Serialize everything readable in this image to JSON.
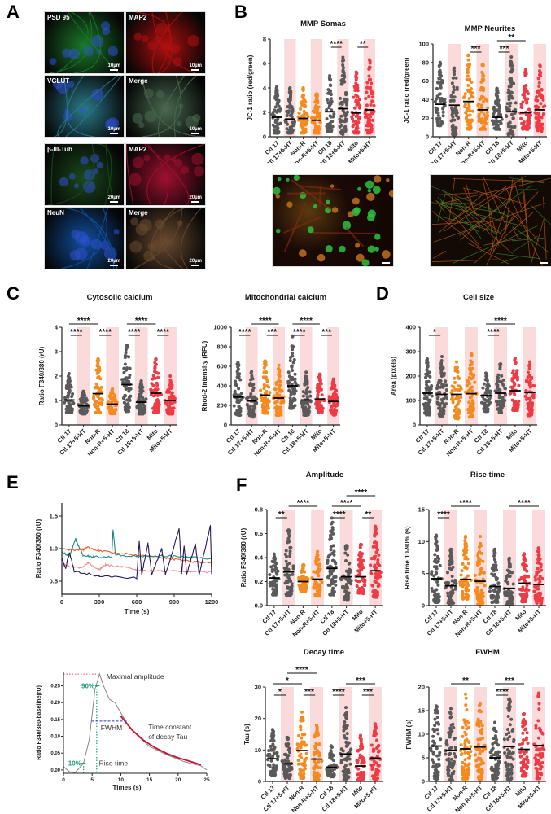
{
  "panels": {
    "A": {
      "letter": "A"
    },
    "B": {
      "letter": "B"
    },
    "C": {
      "letter": "C"
    },
    "D": {
      "letter": "D"
    },
    "E": {
      "letter": "E"
    },
    "F": {
      "letter": "F"
    }
  },
  "microscopy_A": [
    {
      "label": "PSD 95",
      "scale": "10µm",
      "color": "#1a7a2a"
    },
    {
      "label": "MAP2",
      "scale": "10µm",
      "color": "#b01010"
    },
    {
      "label": "VGLUT",
      "scale": "10µm",
      "color": "#2a7a8a"
    },
    {
      "label": "Merge",
      "scale": "10µm",
      "color": "#4a6a50"
    },
    {
      "label": "β-III-Tub",
      "scale": "20µm",
      "color": "#1a4a1a"
    },
    {
      "label": "MAP2",
      "scale": "20µm",
      "color": "#a01030"
    },
    {
      "label": "NeuN",
      "scale": "20µm",
      "color": "#1050a0"
    },
    {
      "label": "Merge",
      "scale": "20µm",
      "color": "#6a4a30"
    }
  ],
  "microscopy_B": [
    {
      "label": "",
      "scale": ""
    },
    {
      "label": "",
      "scale": ""
    }
  ],
  "colors": {
    "ctl": "#5a5a5a",
    "nonr": "#f58a1f",
    "mito": "#ee3b45",
    "shade": "#fadadb",
    "trace_orange": "#f25a2a",
    "trace_teal": "#1e8a84",
    "trace_pink": "#f08a88",
    "trace_navy": "#2a1a5a"
  },
  "groups": [
    "Ctl 17",
    "Ctl 17+5-HT",
    "Non-R",
    "Non-R+5-HT",
    "Ctl 18",
    "Ctl 18+5-HT",
    "Mito",
    "Mito+5-HT"
  ],
  "chart_data": [
    {
      "id": "mmp_somas",
      "type": "scatter",
      "title": "MMP Somas",
      "ylabel": "JC-1 ratio (red/green)",
      "ylim": [
        0,
        8
      ],
      "yticks": [
        0,
        2,
        4,
        6,
        8
      ],
      "categories": [
        "Ctl 17",
        "Ctl 17+5-HT",
        "Non-R",
        "Non-R+5-HT",
        "Ctl 18",
        "Ctl 18+5-HT",
        "Mito",
        "Mito+5-HT"
      ],
      "means": [
        1.6,
        1.45,
        1.5,
        1.35,
        2.05,
        2.3,
        1.95,
        2.2
      ],
      "max": [
        4.1,
        4.0,
        4.0,
        3.5,
        5.0,
        6.5,
        5.3,
        6.3
      ],
      "min": [
        0.3,
        0.3,
        0.3,
        0.3,
        0.4,
        0.2,
        0.3,
        0.3
      ],
      "significance": [
        {
          "from": 4,
          "to": 5,
          "label": "****",
          "level": 0
        },
        {
          "from": 6,
          "to": 7,
          "label": "**",
          "level": 0
        }
      ]
    },
    {
      "id": "mmp_neurites",
      "type": "scatter",
      "title": "MMP Neurites",
      "ylabel": "JC-1 ratio (red/green)",
      "ylim": [
        0,
        100
      ],
      "yticks": [
        0,
        20,
        40,
        60,
        80,
        100
      ],
      "categories": [
        "Ctl 17",
        "Ctl 17+5-HT",
        "Non-R",
        "Non-R+5-HT",
        "Ctl 18",
        "Ctl 18+5-HT",
        "Mito",
        "Mito+5-HT"
      ],
      "means": [
        35,
        34,
        38,
        29,
        21,
        27,
        26,
        29
      ],
      "max": [
        80,
        74,
        88,
        78,
        52,
        86,
        72,
        77
      ],
      "min": [
        12,
        2,
        8,
        8,
        8,
        2,
        8,
        6
      ],
      "significance": [
        {
          "from": 2,
          "to": 3,
          "label": "***",
          "level": 0
        },
        {
          "from": 4,
          "to": 5,
          "label": "***",
          "level": 0
        },
        {
          "from": 4,
          "to": 6,
          "label": "**",
          "level": 1
        }
      ]
    },
    {
      "id": "cytosolic_calcium",
      "type": "scatter",
      "title": "Cytosolic calcium",
      "ylabel": "Ratio F340/380 (rU)",
      "ylim": [
        0,
        4
      ],
      "yticks": [
        0,
        1,
        2,
        3,
        4
      ],
      "categories": [
        "Ctl 17",
        "Ctl 17+5-HT",
        "Non-R",
        "Non-R+5-HT",
        "Ctl 18",
        "Ctl 18+5-HT",
        "Mito",
        "Mito+5-HT"
      ],
      "means": [
        1.02,
        0.78,
        1.28,
        0.85,
        1.65,
        0.93,
        1.3,
        1.0
      ],
      "max": [
        2.1,
        1.38,
        2.7,
        1.47,
        3.25,
        1.8,
        2.7,
        2.0
      ],
      "min": [
        0.5,
        0.45,
        0.5,
        0.45,
        0.55,
        0.45,
        0.5,
        0.45
      ],
      "significance": [
        {
          "from": 0,
          "to": 1,
          "label": "****",
          "level": 0
        },
        {
          "from": 2,
          "to": 3,
          "label": "****",
          "level": 0
        },
        {
          "from": 4,
          "to": 5,
          "label": "****",
          "level": 0
        },
        {
          "from": 6,
          "to": 7,
          "label": "****",
          "level": 0
        },
        {
          "from": 0,
          "to": 2,
          "label": "****",
          "level": 1
        },
        {
          "from": 4,
          "to": 6,
          "label": "****",
          "level": 1
        }
      ]
    },
    {
      "id": "mitochondrial_calcium",
      "type": "scatter",
      "title": "Mitochondrial calcium",
      "ylabel": "Rhod-2 intensity (RFU)",
      "ylim": [
        0,
        1000
      ],
      "yticks": [
        0,
        200,
        400,
        600,
        800,
        1000
      ],
      "categories": [
        "Ctl 17",
        "Ctl 17+5-HT",
        "Non-R",
        "Non-R+5-HT",
        "Ctl 18",
        "Ctl 18+5-HT",
        "Mito",
        "Mito+5-HT"
      ],
      "means": [
        285,
        245,
        305,
        275,
        400,
        255,
        265,
        240
      ],
      "max": [
        640,
        545,
        655,
        610,
        910,
        540,
        520,
        470
      ],
      "min": [
        100,
        80,
        120,
        100,
        170,
        100,
        130,
        100
      ],
      "significance": [
        {
          "from": 0,
          "to": 1,
          "label": "****",
          "level": 0
        },
        {
          "from": 2,
          "to": 3,
          "label": "***",
          "level": 0
        },
        {
          "from": 4,
          "to": 5,
          "label": "****",
          "level": 0
        },
        {
          "from": 6,
          "to": 7,
          "label": "***",
          "level": 0
        },
        {
          "from": 1,
          "to": 3,
          "label": "****",
          "level": 1
        },
        {
          "from": 4,
          "to": 6,
          "label": "****",
          "level": 1
        }
      ]
    },
    {
      "id": "cell_size",
      "type": "scatter",
      "title": "Cell size",
      "ylabel": "Area (pixels)",
      "ylim": [
        0,
        400
      ],
      "yticks": [
        0,
        100,
        200,
        300,
        400
      ],
      "categories": [
        "Ctl 17",
        "Ctl 17+5-HT",
        "Non-R",
        "Non-R+5-HT",
        "Ctl 18",
        "Ctl 18+5-HT",
        "Mito",
        "Mito+5-HT"
      ],
      "means": [
        130,
        125,
        125,
        128,
        120,
        130,
        140,
        133
      ],
      "max": [
        270,
        280,
        258,
        290,
        212,
        250,
        272,
        258
      ],
      "min": [
        40,
        35,
        25,
        32,
        55,
        50,
        60,
        38
      ],
      "significance": [
        {
          "from": 0,
          "to": 1,
          "label": "*",
          "level": 0
        },
        {
          "from": 4,
          "to": 5,
          "label": "****",
          "level": 0
        },
        {
          "from": 4,
          "to": 6,
          "label": "****",
          "level": 1
        }
      ]
    },
    {
      "id": "calcium_traces",
      "type": "line",
      "title": "",
      "xlabel": "Time (s)",
      "ylabel": "Ratio F340/380 (rU)",
      "xlim": [
        0,
        1200
      ],
      "ylim": [
        0.3,
        1.7
      ],
      "xticks": [
        0,
        300,
        600,
        900,
        1200
      ],
      "yticks": [
        0.5,
        1.0,
        1.5
      ],
      "series": [
        {
          "name": "orange",
          "color": "#f25a2a",
          "x": [
            0,
            100,
            170,
            200,
            300,
            450,
            600,
            750,
            900,
            1050,
            1200
          ],
          "y": [
            1.0,
            0.98,
            0.99,
            1.02,
            0.97,
            0.93,
            0.9,
            0.88,
            0.84,
            0.8,
            0.78
          ]
        },
        {
          "name": "teal",
          "color": "#1e8a84",
          "x": [
            0,
            60,
            110,
            130,
            170,
            250,
            400,
            410,
            430,
            600,
            800,
            1000,
            1200
          ],
          "y": [
            0.95,
            0.88,
            1.15,
            1.05,
            0.9,
            0.87,
            0.88,
            1.3,
            0.9,
            0.88,
            0.89,
            0.87,
            0.85
          ]
        },
        {
          "name": "pink",
          "color": "#f08a88",
          "x": [
            0,
            150,
            210,
            300,
            350,
            480,
            600,
            800,
            1000,
            1200
          ],
          "y": [
            0.75,
            0.7,
            0.78,
            0.68,
            0.75,
            0.72,
            0.67,
            0.66,
            0.65,
            0.64
          ]
        },
        {
          "name": "navy",
          "color": "#2a1a5a",
          "x": [
            0,
            30,
            60,
            100,
            300,
            600,
            620,
            640,
            690,
            720,
            800,
            830,
            940,
            960,
            980,
            1000,
            1070,
            1100,
            1190,
            1200
          ],
          "y": [
            0.85,
            0.7,
            0.95,
            0.65,
            0.58,
            0.55,
            1.12,
            0.6,
            1.08,
            0.6,
            1.0,
            0.6,
            1.3,
            0.62,
            1.05,
            0.6,
            1.07,
            0.6,
            1.35,
            0.6
          ]
        }
      ]
    },
    {
      "id": "transient_schematic",
      "type": "line",
      "title": "",
      "xlabel": "Times (s)",
      "ylabel": "Ratio F340/380-baseline(rU)",
      "xlim": [
        0,
        25
      ],
      "ylim": [
        -0.01,
        0.29
      ],
      "xticks": [
        0,
        5,
        10,
        15,
        20,
        25
      ],
      "yticks": [
        0.0,
        0.05,
        0.1,
        0.15,
        0.2,
        0.25
      ],
      "annotations": [
        "Maximal amplitude",
        "90%",
        "10%",
        "FWHM",
        "Rise time",
        "Time constant",
        "of decay Tau"
      ],
      "series": [
        {
          "name": "trace",
          "color": "#888888",
          "x": [
            0,
            1,
            2,
            3,
            3.5,
            4.5,
            5.5,
            6.3,
            7,
            8,
            9,
            10,
            11,
            13,
            15,
            18,
            21,
            24,
            25
          ],
          "y": [
            0.01,
            -0.005,
            -0.008,
            0.01,
            0.02,
            0.09,
            0.24,
            0.285,
            0.25,
            0.21,
            0.2,
            0.17,
            0.14,
            0.1,
            0.07,
            0.045,
            0.025,
            0.012,
            0.0
          ]
        },
        {
          "name": "fit",
          "color": "#cc1133",
          "x": [
            10,
            12,
            14,
            16,
            18,
            20,
            22,
            24
          ],
          "y": [
            0.16,
            0.118,
            0.088,
            0.066,
            0.049,
            0.036,
            0.026,
            0.015
          ]
        }
      ]
    },
    {
      "id": "amplitude",
      "type": "scatter",
      "title": "Amplitude",
      "ylabel": "Ratio F340/380 (rU)",
      "ylim": [
        0,
        0.8
      ],
      "yticks": [
        0.0,
        0.2,
        0.4,
        0.6,
        0.8
      ],
      "categories": [
        "Ctl 17",
        "Ctl 17+5-HT",
        "Non-R",
        "Non-R+5-HT",
        "Ctl 18",
        "Ctl 18+5-HT",
        "Mito",
        "Mito+5-HT"
      ],
      "means": [
        0.23,
        0.28,
        0.2,
        0.22,
        0.31,
        0.24,
        0.24,
        0.29
      ],
      "max": [
        0.43,
        0.63,
        0.34,
        0.45,
        0.73,
        0.5,
        0.51,
        0.66
      ],
      "min": [
        0.09,
        0.08,
        0.12,
        0.08,
        0.09,
        0.05,
        0.1,
        0.07
      ],
      "significance": [
        {
          "from": 0,
          "to": 1,
          "label": "**",
          "level": 0
        },
        {
          "from": 4,
          "to": 5,
          "label": "****",
          "level": 0
        },
        {
          "from": 6,
          "to": 7,
          "label": "**",
          "level": 0
        },
        {
          "from": 1,
          "to": 3,
          "label": "****",
          "level": 1
        },
        {
          "from": 4,
          "to": 6,
          "label": "****",
          "level": 1
        },
        {
          "from": 5,
          "to": 7,
          "label": "****",
          "level": 2
        }
      ]
    },
    {
      "id": "rise_time",
      "type": "scatter",
      "title": "Rise time",
      "ylabel": "Rise time 10-90% (s)",
      "ylim": [
        0,
        15
      ],
      "yticks": [
        0,
        5,
        10,
        15
      ],
      "categories": [
        "Ctl 17",
        "Ctl 17+5-HT",
        "Non-R",
        "Non-R+5-HT",
        "Ctl 18",
        "Ctl 18+5-HT",
        "Mito",
        "Mito+5-HT"
      ],
      "means": [
        4.2,
        3.1,
        4.1,
        3.8,
        3.0,
        2.7,
        3.5,
        3.3
      ],
      "max": [
        11,
        8.8,
        10.8,
        10.8,
        8.8,
        7.4,
        8.1,
        9.0
      ],
      "min": [
        0.5,
        0.3,
        1.0,
        0.2,
        0.5,
        0.1,
        0.5,
        0.3
      ],
      "significance": [
        {
          "from": 0,
          "to": 1,
          "label": "****",
          "level": 0
        },
        {
          "from": 1,
          "to": 3,
          "label": "****",
          "level": 1
        },
        {
          "from": 5,
          "to": 7,
          "label": "****",
          "level": 1
        }
      ]
    },
    {
      "id": "decay_time",
      "type": "scatter",
      "title": "Decay time",
      "ylabel": "Tau (s)",
      "ylim": [
        0,
        30
      ],
      "yticks": [
        0,
        10,
        20,
        30
      ],
      "categories": [
        "Ctl 17",
        "Ctl 17+5-HT",
        "Non-R",
        "Non-R+5-HT",
        "Ctl 18",
        "Ctl 18+5-HT",
        "Mito",
        "Mito+5-HT"
      ],
      "means": [
        7.2,
        5.6,
        9.8,
        7.1,
        4.5,
        8.7,
        4.9,
        7.4
      ],
      "max": [
        16.5,
        14.0,
        22.0,
        17.8,
        11.3,
        23.5,
        14.6,
        18.3
      ],
      "min": [
        2.0,
        1.0,
        1.0,
        0.5,
        1.5,
        0.5,
        0.5,
        0.5
      ],
      "significance": [
        {
          "from": 0,
          "to": 1,
          "label": "*",
          "level": 0
        },
        {
          "from": 2,
          "to": 3,
          "label": "***",
          "level": 0
        },
        {
          "from": 4,
          "to": 5,
          "label": "****",
          "level": 0
        },
        {
          "from": 6,
          "to": 7,
          "label": "***",
          "level": 0
        },
        {
          "from": 0,
          "to": 2,
          "label": "*",
          "level": 1
        },
        {
          "from": 5,
          "to": 7,
          "label": "***",
          "level": 1
        },
        {
          "from": 1,
          "to": 3,
          "label": "****",
          "level": 2
        }
      ]
    },
    {
      "id": "fwhm",
      "type": "scatter",
      "title": "FWHM",
      "ylabel": "FWHM (s)",
      "ylim": [
        0,
        20
      ],
      "yticks": [
        0,
        5,
        10,
        15,
        20
      ],
      "categories": [
        "Ctl 17",
        "Ctl 17+5-HT",
        "Non-R",
        "Non-R+5-HT",
        "Ctl 18",
        "Ctl 18+5-HT",
        "Mito",
        "Mito+5-HT"
      ],
      "means": [
        7.5,
        6.6,
        6.9,
        7.3,
        5.0,
        7.4,
        6.8,
        7.6
      ],
      "max": [
        16.0,
        15.4,
        18.5,
        16.4,
        12.5,
        17.5,
        14.3,
        18.7
      ],
      "min": [
        0.5,
        0.2,
        0.5,
        0.2,
        0.5,
        0.2,
        1.0,
        0.6
      ],
      "significance": [
        {
          "from": 4,
          "to": 5,
          "label": "****",
          "level": 0
        },
        {
          "from": 1,
          "to": 3,
          "label": "**",
          "level": 1
        },
        {
          "from": 4,
          "to": 6,
          "label": "***",
          "level": 1
        }
      ]
    }
  ]
}
